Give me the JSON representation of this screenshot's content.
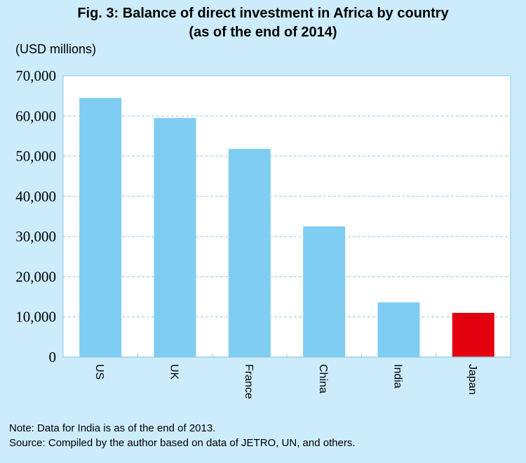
{
  "chart_data": {
    "type": "bar",
    "title": "Fig. 3: Balance of direct investment in Africa by country",
    "subtitle": "(as of the end of 2014)",
    "ylabel": "(USD millions)",
    "xlabel": "",
    "categories": [
      "US",
      "UK",
      "France",
      "China",
      "India",
      "Japan"
    ],
    "values": [
      64500,
      59500,
      51800,
      32500,
      13600,
      11000
    ],
    "ylim": [
      0,
      70000
    ],
    "yticks": [
      "0",
      "10,000",
      "20,000",
      "30,000",
      "40,000",
      "50,000",
      "60,000",
      "70,000"
    ],
    "bar_colors": [
      "#7fcdf2",
      "#7fcdf2",
      "#7fcdf2",
      "#7fcdf2",
      "#7fcdf2",
      "#e3000f"
    ],
    "grid": true,
    "x_label_rotation": "vertical"
  },
  "notes": {
    "line1": "Note: Data for India is as of the end of 2013.",
    "line2": "Source: Compiled by the author based on data of JETRO, UN, and others."
  }
}
